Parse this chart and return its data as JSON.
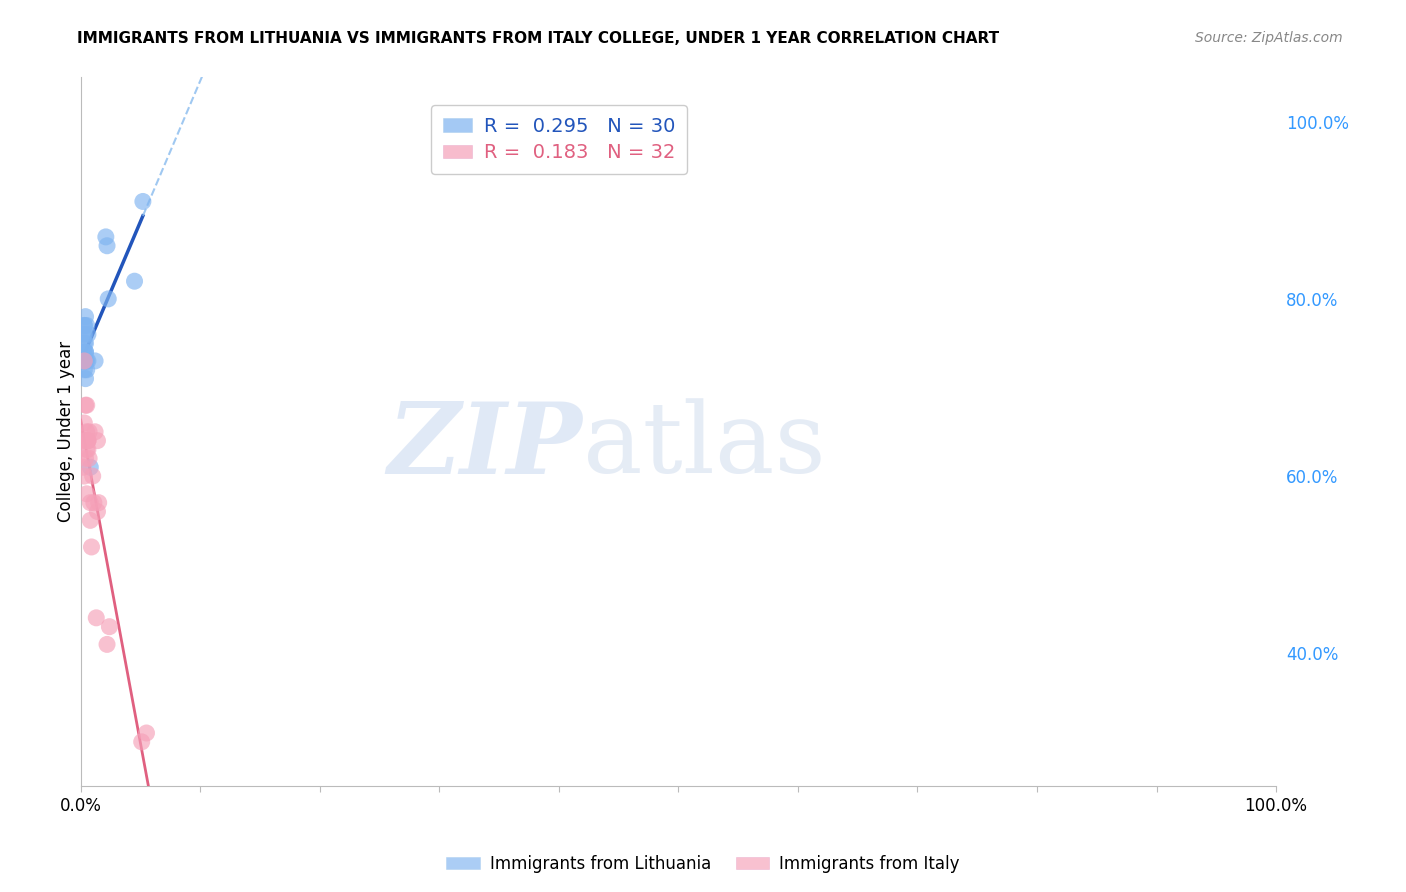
{
  "title": "IMMIGRANTS FROM LITHUANIA VS IMMIGRANTS FROM ITALY COLLEGE, UNDER 1 YEAR CORRELATION CHART",
  "source": "Source: ZipAtlas.com",
  "ylabel": "College, Under 1 year",
  "legend_blue_r": "0.295",
  "legend_blue_n": "30",
  "legend_pink_r": "0.183",
  "legend_pink_n": "32",
  "blue_color": "#7EB3F0",
  "pink_color": "#F5A0B8",
  "blue_line_color": "#2255BB",
  "pink_line_color": "#E06080",
  "blue_dash_color": "#88BBEE",
  "watermark_text": "ZIP",
  "watermark_text2": "atlas",
  "xlim": [
    0.0,
    1.0
  ],
  "ylim": [
    0.25,
    1.05
  ],
  "right_ytick_values": [
    0.4,
    0.6,
    0.8,
    1.0
  ],
  "right_ytick_labels": [
    "40.0%",
    "60.0%",
    "80.0%",
    "100.0%"
  ],
  "blue_x": [
    0.002,
    0.003,
    0.004,
    0.002,
    0.003,
    0.005,
    0.003,
    0.003,
    0.004,
    0.002,
    0.003,
    0.004,
    0.005,
    0.006,
    0.003,
    0.004,
    0.004,
    0.003,
    0.002,
    0.006,
    0.003,
    0.008,
    0.005,
    0.004,
    0.012,
    0.021,
    0.022,
    0.023,
    0.045,
    0.052
  ],
  "blue_y": [
    0.76,
    0.77,
    0.78,
    0.74,
    0.76,
    0.73,
    0.77,
    0.75,
    0.74,
    0.73,
    0.74,
    0.73,
    0.72,
    0.73,
    0.72,
    0.71,
    0.74,
    0.73,
    0.74,
    0.76,
    0.73,
    0.61,
    0.77,
    0.75,
    0.73,
    0.87,
    0.86,
    0.8,
    0.82,
    0.91
  ],
  "pink_x": [
    0.002,
    0.003,
    0.004,
    0.003,
    0.004,
    0.005,
    0.004,
    0.003,
    0.006,
    0.005,
    0.004,
    0.005,
    0.006,
    0.007,
    0.005,
    0.006,
    0.007,
    0.006,
    0.008,
    0.008,
    0.009,
    0.01,
    0.011,
    0.013,
    0.014,
    0.015,
    0.012,
    0.014,
    0.022,
    0.024,
    0.051,
    0.055
  ],
  "pink_y": [
    0.61,
    0.6,
    0.62,
    0.73,
    0.64,
    0.65,
    0.68,
    0.66,
    0.64,
    0.63,
    0.64,
    0.68,
    0.64,
    0.62,
    0.58,
    0.64,
    0.65,
    0.63,
    0.55,
    0.57,
    0.52,
    0.6,
    0.57,
    0.44,
    0.56,
    0.57,
    0.65,
    0.64,
    0.41,
    0.43,
    0.3,
    0.31
  ],
  "grid_color": "#DDDDDD",
  "bottom_legend_labels": [
    "Immigrants from Lithuania",
    "Immigrants from Italy"
  ]
}
